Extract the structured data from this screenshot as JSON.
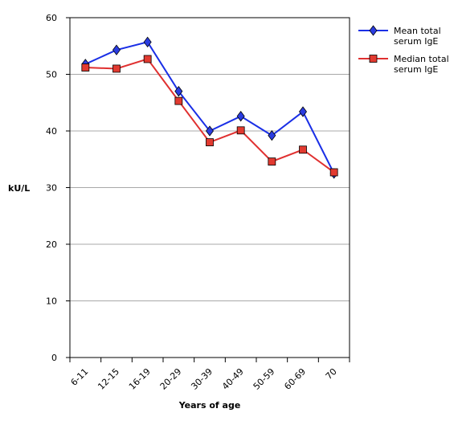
{
  "chart_data": {
    "type": "line",
    "categories": [
      "6-11",
      "12-15",
      "16-19",
      "20-29",
      "30-39",
      "40-49",
      "50-59",
      "60-69",
      "70"
    ],
    "series": [
      {
        "name": "Mean total serum IgE",
        "legend_lines": [
          "Mean total",
          "serum IgE"
        ],
        "values": [
          51.8,
          54.3,
          55.7,
          47.0,
          40.0,
          42.6,
          39.2,
          43.4,
          32.5
        ],
        "color": "#1a2fe6",
        "marker": "diamond",
        "marker_fill": "#2a3ce0"
      },
      {
        "name": "Median total serum IgE",
        "legend_lines": [
          "Median total",
          "serum IgE"
        ],
        "values": [
          51.2,
          51.0,
          52.7,
          45.3,
          38.0,
          40.1,
          34.6,
          36.7,
          32.7
        ],
        "color": "#e03030",
        "marker": "square",
        "marker_fill": "#e23a30"
      }
    ],
    "xlabel": "Years of age",
    "ylabel": "kU/L",
    "ylim": [
      0,
      60
    ],
    "yticks": [
      0,
      10,
      20,
      30,
      40,
      50,
      60
    ],
    "grid": true,
    "legend_position": "right"
  }
}
